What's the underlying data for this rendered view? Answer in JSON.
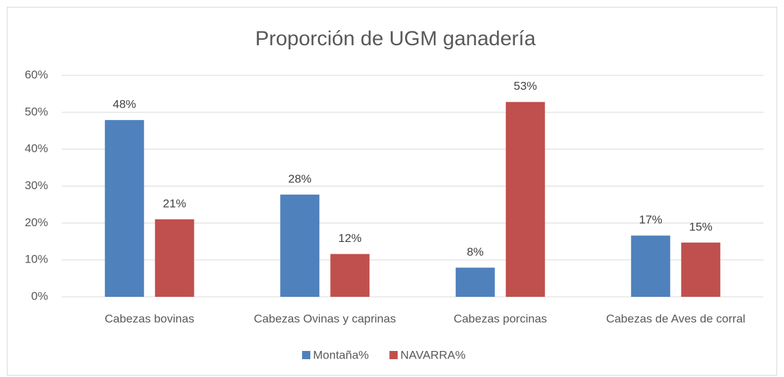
{
  "chart_data": {
    "type": "bar",
    "title": "Proporción de UGM ganadería",
    "categories": [
      "Cabezas bovinas",
      "Cabezas Ovinas y caprinas",
      "Cabezas porcinas",
      "Cabezas de Aves de corral"
    ],
    "series": [
      {
        "name": "Montaña%",
        "color": "#4f81bd",
        "values": [
          47.9,
          27.7,
          7.9,
          16.6
        ],
        "value_labels": [
          "48%",
          "28%",
          "8%",
          "17%"
        ]
      },
      {
        "name": "NAVARRA%",
        "color": "#c0504d",
        "values": [
          21.0,
          11.6,
          52.8,
          14.7
        ],
        "value_labels": [
          "21%",
          "12%",
          "53%",
          "15%"
        ]
      }
    ],
    "ylim": [
      0,
      60
    ],
    "yticks": [
      {
        "value": 0,
        "label": "0%"
      },
      {
        "value": 10,
        "label": "10%"
      },
      {
        "value": 20,
        "label": "20%"
      },
      {
        "value": 30,
        "label": "30%"
      },
      {
        "value": 40,
        "label": "40%"
      },
      {
        "value": 50,
        "label": "50%"
      },
      {
        "value": 60,
        "label": "60%"
      }
    ],
    "grid": true,
    "legend": "bottom"
  }
}
